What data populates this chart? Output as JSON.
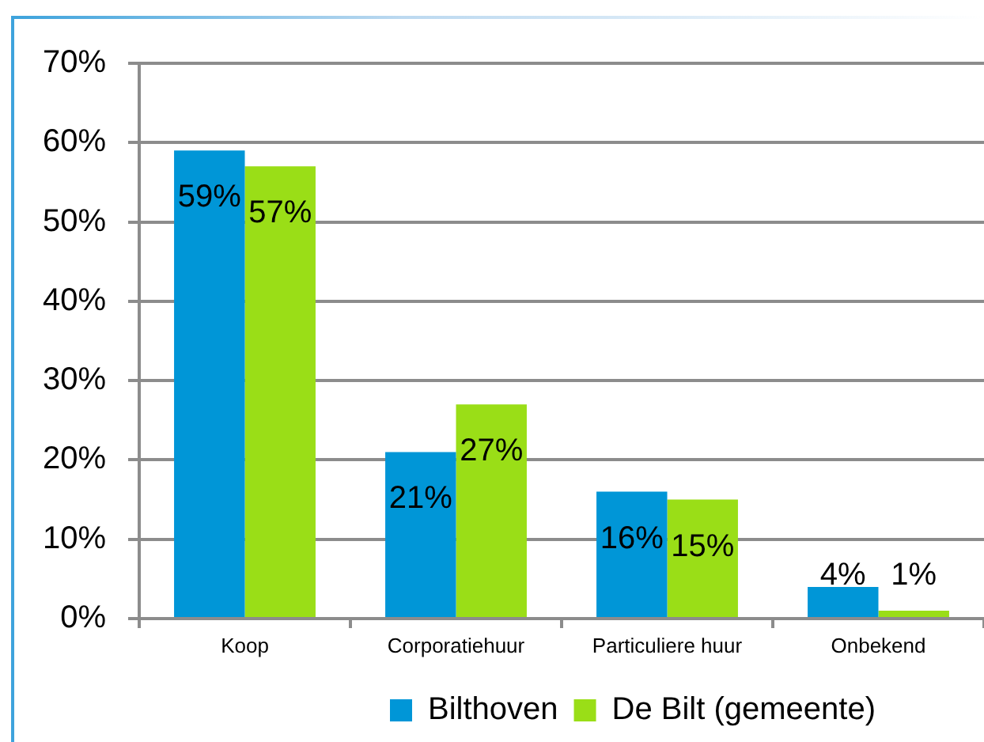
{
  "chart_data": {
    "type": "bar",
    "categories": [
      "Koop",
      "Corporatiehuur",
      "Particuliere huur",
      "Onbekend"
    ],
    "series": [
      {
        "name": "Bilthoven",
        "color": "#0096d7",
        "values": [
          59,
          21,
          16,
          4
        ],
        "value_labels": [
          "59%",
          "21%",
          "16%",
          "4%"
        ]
      },
      {
        "name": "De Bilt (gemeente)",
        "color": "#9ade17",
        "values": [
          57,
          27,
          15,
          1
        ],
        "value_labels": [
          "57%",
          "27%",
          "15%",
          "1%"
        ]
      }
    ],
    "ylim": [
      0,
      70
    ],
    "yticks": [
      {
        "value": 0,
        "label": "0%"
      },
      {
        "value": 10,
        "label": "10%"
      },
      {
        "value": 20,
        "label": "20%"
      },
      {
        "value": 30,
        "label": "30%"
      },
      {
        "value": 40,
        "label": "40%"
      },
      {
        "value": 50,
        "label": "50%"
      },
      {
        "value": 60,
        "label": "60%"
      },
      {
        "value": 70,
        "label": "70%"
      }
    ],
    "grid": "y",
    "legend": "bottom"
  }
}
